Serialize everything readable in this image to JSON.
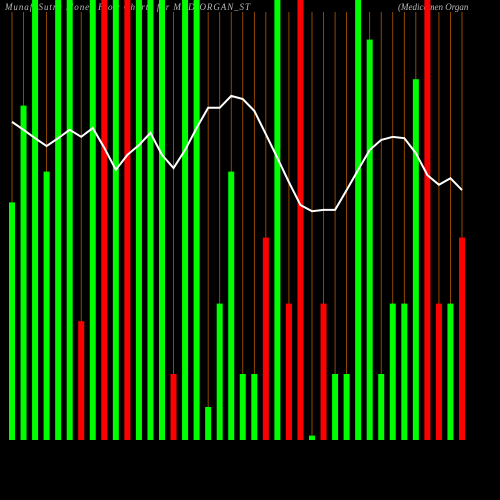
{
  "chart_data": {
    "type": "bar",
    "title": "MunafaSutra Money Flow Charts for MEDIORGAN_ST",
    "subtitle": "(Medicamen Organ",
    "ylim": [
      0,
      100
    ],
    "values": [
      54,
      76,
      100,
      61,
      100,
      100,
      27,
      100,
      100,
      100,
      100,
      100,
      100,
      100,
      15,
      100,
      100,
      7.5,
      31,
      61,
      15,
      15,
      46,
      100,
      31,
      100,
      1,
      31,
      15,
      15,
      100,
      91,
      15,
      31,
      31,
      82,
      100,
      31,
      31,
      46
    ],
    "colors": [
      "#00ff00",
      "#00ff00",
      "#00ff00",
      "#00ff00",
      "#00ff00",
      "#00ff00",
      "#ff0000",
      "#00ff00",
      "#ff0000",
      "#00ff00",
      "#ff0000",
      "#00ff00",
      "#00ff00",
      "#00ff00",
      "#ff0000",
      "#00ff00",
      "#00ff00",
      "#00ff00",
      "#00ff00",
      "#00ff00",
      "#00ff00",
      "#00ff00",
      "#ff0000",
      "#00ff00",
      "#ff0000",
      "#ff0000",
      "#00ff00",
      "#ff0000",
      "#00ff00",
      "#00ff00",
      "#00ff00",
      "#00ff00",
      "#00ff00",
      "#00ff00",
      "#00ff00",
      "#00ff00",
      "#ff0000",
      "#ff0000",
      "#00ff00",
      "#ff0000"
    ],
    "line": {
      "color": "#ffffff",
      "values": [
        72.3,
        70.5,
        68.6,
        66.8,
        68.6,
        70.5,
        68.9,
        70.9,
        66.4,
        61.4,
        64.8,
        67,
        69.8,
        64.8,
        61.8,
        65.9,
        70.9,
        75.5,
        75.5,
        78.2,
        77.5,
        74.8,
        69.5,
        64.1,
        58.6,
        53.4,
        52,
        52.3,
        52.3,
        56.8,
        61.4,
        65.9,
        68.2,
        68.9,
        68.6,
        65.2,
        60.2,
        58,
        59.5,
        56.8
      ]
    },
    "gridcolor": "#b35900"
  }
}
